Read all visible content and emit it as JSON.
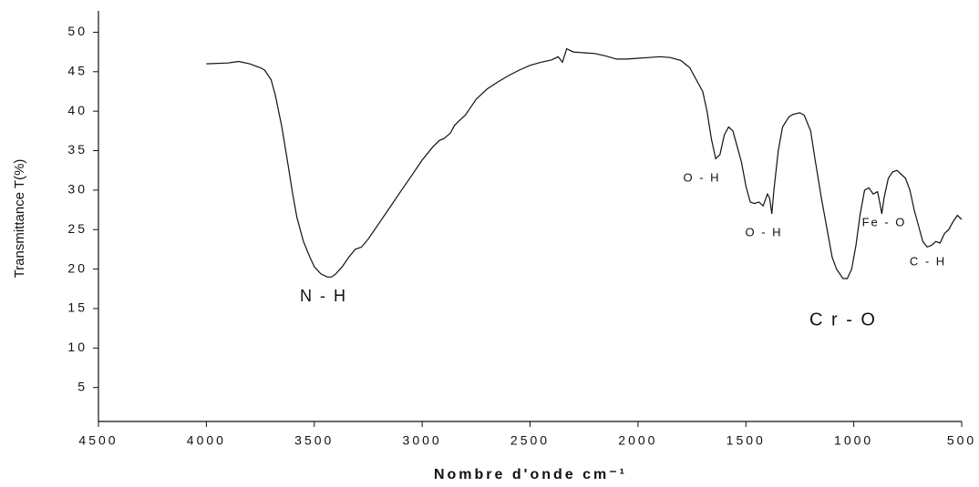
{
  "chart_data": {
    "type": "line",
    "y_label": "Transmittance T(%)",
    "x_label": "Nombre d'onde cm⁻¹",
    "xlim": [
      4500,
      500
    ],
    "ylim": [
      0.7,
      52.7
    ],
    "xticks": [
      4500,
      4000,
      3500,
      3000,
      2500,
      2000,
      1500,
      1000,
      500
    ],
    "yticks": [
      5,
      10,
      15,
      20,
      25,
      30,
      35,
      40,
      45,
      50
    ],
    "grid": false,
    "color": "#111111",
    "annotations": [
      "N - H",
      "O - H",
      "O - H",
      "C r - O",
      "Fe - O",
      "C - H"
    ],
    "x": [
      4000,
      3900,
      3850,
      3800,
      3750,
      3730,
      3700,
      3680,
      3650,
      3620,
      3600,
      3580,
      3550,
      3520,
      3500,
      3470,
      3440,
      3420,
      3400,
      3370,
      3340,
      3310,
      3280,
      3250,
      3200,
      3150,
      3100,
      3050,
      3000,
      2950,
      2920,
      2900,
      2870,
      2850,
      2820,
      2800,
      2750,
      2700,
      2650,
      2600,
      2550,
      2500,
      2450,
      2400,
      2370,
      2350,
      2330,
      2300,
      2250,
      2200,
      2150,
      2100,
      2050,
      2000,
      1950,
      1900,
      1850,
      1800,
      1760,
      1730,
      1700,
      1680,
      1660,
      1640,
      1620,
      1600,
      1580,
      1560,
      1540,
      1520,
      1500,
      1480,
      1460,
      1440,
      1420,
      1400,
      1390,
      1380,
      1370,
      1350,
      1330,
      1300,
      1280,
      1250,
      1230,
      1200,
      1180,
      1150,
      1120,
      1100,
      1080,
      1050,
      1030,
      1010,
      990,
      970,
      950,
      930,
      910,
      890,
      880,
      870,
      860,
      840,
      820,
      800,
      780,
      760,
      740,
      720,
      700,
      680,
      660,
      640,
      620,
      600,
      580,
      560,
      540,
      520,
      500
    ],
    "values": [
      46.0,
      46.1,
      46.3,
      46.0,
      45.5,
      45.2,
      44.0,
      42,
      38,
      33,
      29.5,
      26.5,
      23.5,
      21.5,
      20.3,
      19.4,
      19.0,
      19.0,
      19.4,
      20.3,
      21.5,
      22.5,
      22.8,
      23.8,
      25.8,
      27.8,
      29.8,
      31.8,
      33.8,
      35.5,
      36.3,
      36.5,
      37.2,
      38.2,
      39.0,
      39.5,
      41.5,
      42.8,
      43.7,
      44.5,
      45.2,
      45.8,
      46.2,
      46.5,
      46.9,
      46.2,
      47.9,
      47.5,
      47.4,
      47.3,
      47.0,
      46.6,
      46.6,
      46.7,
      46.8,
      46.9,
      46.8,
      46.4,
      45.5,
      44.0,
      42.5,
      40.0,
      36.5,
      34.0,
      34.5,
      37.0,
      38.0,
      37.5,
      35.5,
      33.5,
      30.5,
      28.5,
      28.3,
      28.5,
      28.0,
      29.5,
      29.0,
      27.0,
      30.0,
      35.0,
      38.0,
      39.3,
      39.6,
      39.8,
      39.5,
      37.5,
      34.0,
      29.0,
      24.5,
      21.5,
      20.0,
      18.8,
      18.8,
      20.0,
      23.0,
      27.0,
      30.0,
      30.3,
      29.5,
      29.8,
      28.5,
      27.0,
      29.0,
      31.5,
      32.3,
      32.5,
      32.0,
      31.5,
      30.0,
      27.5,
      25.5,
      23.5,
      22.8,
      23.0,
      23.5,
      23.3,
      24.5,
      25.0,
      26.0,
      26.8,
      26.3
    ]
  }
}
